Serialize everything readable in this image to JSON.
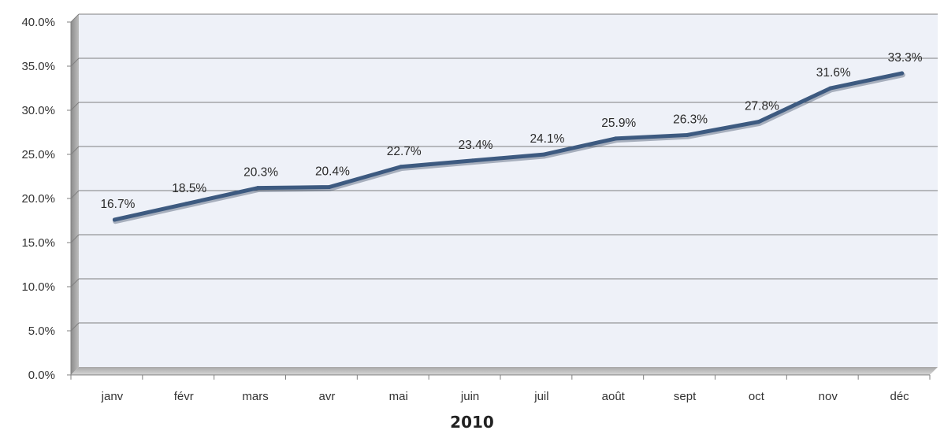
{
  "chart_data": {
    "type": "line",
    "title": "2010",
    "xlabel": "2010",
    "ylabel": "",
    "categories": [
      "janv",
      "févr",
      "mars",
      "avr",
      "mai",
      "juin",
      "juil",
      "août",
      "sept",
      "oct",
      "nov",
      "déc"
    ],
    "series": [
      {
        "values": [
          16.7,
          18.5,
          20.3,
          20.4,
          22.7,
          23.4,
          24.1,
          25.9,
          26.3,
          27.8,
          31.6,
          33.3
        ],
        "data_labels": [
          "16.7%",
          "18.5%",
          "20.3%",
          "20.4%",
          "22.7%",
          "23.4%",
          "24.1%",
          "25.9%",
          "26.3%",
          "27.8%",
          "31.6%",
          "33.3%"
        ],
        "color": "#3d5a80"
      }
    ],
    "ylim": [
      0,
      40
    ],
    "y_ticks": [
      0,
      5,
      10,
      15,
      20,
      25,
      30,
      35,
      40
    ],
    "y_tick_labels": [
      "0.0%",
      "5.0%",
      "10.0%",
      "15.0%",
      "20.0%",
      "25.0%",
      "30.0%",
      "35.0%",
      "40.0%"
    ],
    "grid": true,
    "legend": "none",
    "colors": {
      "plot_background": "#eef1f8",
      "gridline": "#7f7f7f",
      "line": "#3d5a80"
    }
  }
}
